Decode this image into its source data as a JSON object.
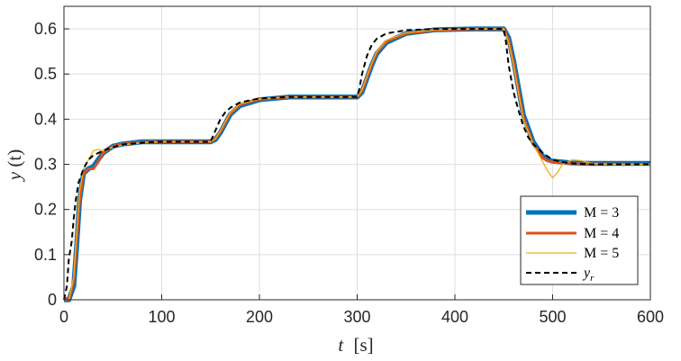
{
  "chart_data": {
    "type": "line",
    "xlabel": "t [s]",
    "ylabel": "y(t)",
    "xlim": [
      0,
      600
    ],
    "ylim": [
      0,
      0.65
    ],
    "xticks": [
      "0",
      "100",
      "200",
      "300",
      "400",
      "500",
      "600"
    ],
    "yticks": [
      "0",
      "0.1",
      "0.2",
      "0.3",
      "0.4",
      "0.5",
      "0.6"
    ],
    "grid": true,
    "legend_position": "bottom-right",
    "series": [
      {
        "name": "M = 3",
        "color": "#0072BD",
        "style": "solid-thick",
        "x": [
          0,
          5,
          10,
          13,
          16,
          20,
          25,
          30,
          35,
          40,
          50,
          60,
          80,
          100,
          150,
          155,
          160,
          170,
          180,
          200,
          230,
          300,
          305,
          310,
          315,
          320,
          330,
          350,
          380,
          420,
          450,
          455,
          460,
          465,
          470,
          480,
          490,
          495,
          500,
          510,
          520,
          540,
          600
        ],
        "y": [
          0,
          0,
          0.03,
          0.12,
          0.22,
          0.28,
          0.29,
          0.295,
          0.31,
          0.325,
          0.34,
          0.345,
          0.35,
          0.35,
          0.35,
          0.355,
          0.37,
          0.41,
          0.43,
          0.443,
          0.449,
          0.449,
          0.46,
          0.49,
          0.52,
          0.545,
          0.57,
          0.59,
          0.598,
          0.6,
          0.6,
          0.58,
          0.53,
          0.47,
          0.41,
          0.35,
          0.318,
          0.31,
          0.307,
          0.305,
          0.303,
          0.302,
          0.302
        ]
      },
      {
        "name": "M = 4",
        "color": "#D95319",
        "style": "solid",
        "x": [
          0,
          5,
          10,
          13,
          16,
          20,
          25,
          30,
          35,
          40,
          50,
          60,
          80,
          100,
          150,
          155,
          160,
          170,
          180,
          200,
          230,
          300,
          305,
          310,
          315,
          320,
          330,
          350,
          380,
          420,
          450,
          455,
          460,
          465,
          470,
          480,
          490,
          495,
          500,
          510,
          520,
          540,
          600
        ],
        "y": [
          0,
          0,
          0.04,
          0.13,
          0.22,
          0.28,
          0.29,
          0.29,
          0.305,
          0.325,
          0.34,
          0.345,
          0.349,
          0.35,
          0.35,
          0.356,
          0.372,
          0.412,
          0.432,
          0.444,
          0.449,
          0.449,
          0.462,
          0.492,
          0.522,
          0.547,
          0.572,
          0.59,
          0.597,
          0.6,
          0.6,
          0.575,
          0.525,
          0.465,
          0.405,
          0.345,
          0.314,
          0.308,
          0.305,
          0.303,
          0.302,
          0.301,
          0.3
        ]
      },
      {
        "name": "M = 5",
        "color": "#EDB120",
        "style": "solid-thin",
        "x": [
          0,
          5,
          10,
          13,
          16,
          20,
          25,
          30,
          35,
          40,
          50,
          60,
          80,
          100,
          150,
          155,
          160,
          170,
          180,
          200,
          230,
          300,
          305,
          310,
          315,
          320,
          330,
          350,
          380,
          420,
          450,
          455,
          460,
          465,
          470,
          480,
          490,
          495,
          500,
          505,
          510,
          520,
          530,
          540,
          560,
          600
        ],
        "y": [
          0,
          0,
          0.05,
          0.15,
          0.24,
          0.29,
          0.31,
          0.33,
          0.333,
          0.33,
          0.338,
          0.343,
          0.348,
          0.35,
          0.35,
          0.357,
          0.374,
          0.414,
          0.434,
          0.445,
          0.449,
          0.449,
          0.465,
          0.495,
          0.525,
          0.55,
          0.575,
          0.592,
          0.598,
          0.6,
          0.6,
          0.57,
          0.52,
          0.46,
          0.4,
          0.345,
          0.305,
          0.285,
          0.27,
          0.282,
          0.3,
          0.31,
          0.308,
          0.302,
          0.3,
          0.3
        ]
      },
      {
        "name": "y_r",
        "color": "#000000",
        "style": "dashed",
        "x": [
          0,
          3,
          5,
          8,
          10,
          12,
          15,
          20,
          25,
          30,
          35,
          40,
          50,
          60,
          80,
          100,
          150,
          152,
          155,
          160,
          165,
          170,
          180,
          200,
          230,
          300,
          302,
          305,
          310,
          315,
          320,
          330,
          350,
          380,
          420,
          450,
          452,
          455,
          460,
          465,
          470,
          475,
          480,
          490,
          500,
          510,
          520,
          540,
          600
        ],
        "y": [
          0,
          0.03,
          0.09,
          0.13,
          0.18,
          0.22,
          0.26,
          0.29,
          0.31,
          0.32,
          0.325,
          0.33,
          0.338,
          0.344,
          0.348,
          0.35,
          0.35,
          0.36,
          0.375,
          0.4,
          0.415,
          0.425,
          0.437,
          0.446,
          0.449,
          0.449,
          0.465,
          0.5,
          0.54,
          0.565,
          0.578,
          0.59,
          0.597,
          0.6,
          0.6,
          0.6,
          0.575,
          0.52,
          0.46,
          0.42,
          0.385,
          0.36,
          0.345,
          0.325,
          0.31,
          0.305,
          0.302,
          0.3,
          0.3
        ]
      }
    ]
  },
  "legend": {
    "items": [
      {
        "label": "M = 3"
      },
      {
        "label": "M = 4"
      },
      {
        "label": "M = 5"
      },
      {
        "label": "y"
      }
    ],
    "subscript": "r"
  },
  "axes": {
    "xlabel_var": "t",
    "xlabel_unit": "[s]",
    "ylabel_func": "y",
    "ylabel_arg": "(t)"
  }
}
